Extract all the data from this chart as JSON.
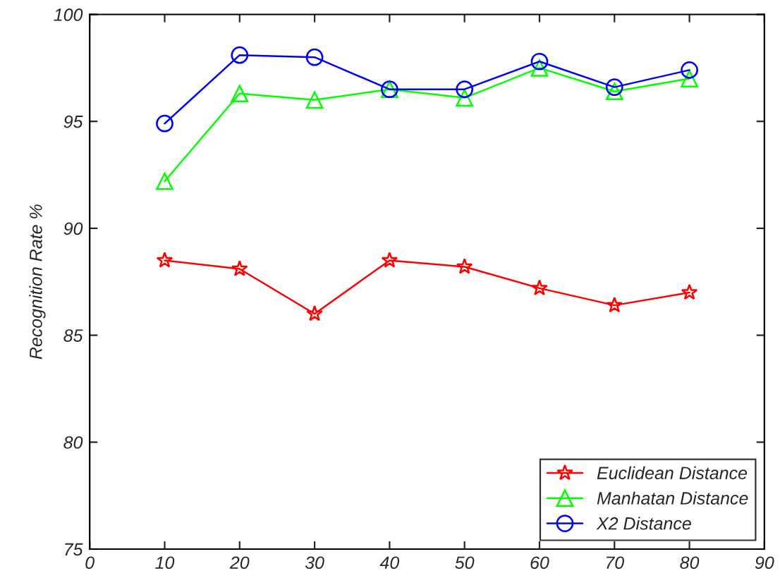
{
  "chart_data": {
    "type": "line",
    "ylabel": "Recognition Rate %",
    "x": [
      10,
      20,
      30,
      40,
      50,
      60,
      70,
      80
    ],
    "series": [
      {
        "name": "Euclidean Distance",
        "color": "#ff0000",
        "marker": "star",
        "values": [
          88.5,
          88.1,
          86.0,
          88.5,
          88.2,
          87.2,
          86.4,
          87.0
        ]
      },
      {
        "name": "Manhatan Distance",
        "color": "#00ff00",
        "marker": "triangle",
        "values": [
          92.2,
          96.3,
          96.0,
          96.5,
          96.1,
          97.5,
          96.4,
          97.0
        ]
      },
      {
        "name": "X2 Distance",
        "color": "#0000ff",
        "marker": "circle",
        "values": [
          94.9,
          98.1,
          98.0,
          96.5,
          96.5,
          97.8,
          96.6,
          97.4
        ]
      }
    ],
    "xlim": [
      0,
      90
    ],
    "xticks": [
      0,
      10,
      20,
      30,
      40,
      50,
      60,
      70,
      80,
      90
    ],
    "ylim": [
      75,
      100
    ],
    "yticks": [
      75,
      80,
      85,
      90,
      95,
      100
    ],
    "legend": "bottom right",
    "grid": false,
    "line_style": "solid"
  }
}
